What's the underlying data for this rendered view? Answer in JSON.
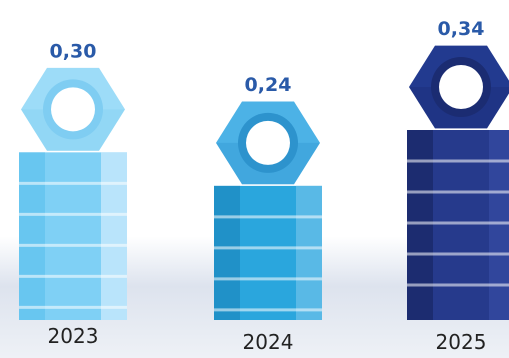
{
  "chart_data": {
    "type": "bar",
    "categories": [
      "2023",
      "2024",
      "2025"
    ],
    "values": [
      0.3,
      0.24,
      0.34
    ],
    "value_labels": [
      "0,30",
      "0,24",
      "0,34"
    ],
    "title": "",
    "xlabel": "",
    "ylabel": "",
    "ylim": [
      0,
      0.34
    ],
    "grid": false,
    "colors": {
      "2023": {
        "main": "#7fd0f5",
        "dark": "#66c4ef",
        "light": "#c3e8fb",
        "hex": "#9ddcf8",
        "hexDark": "#7fcdf2"
      },
      "2024": {
        "main": "#2aa6dd",
        "dark": "#1f8fc5",
        "light": "#62bce8",
        "hex": "#4cb2e6",
        "hexDark": "#2d93cd"
      },
      "2025": {
        "main": "#263a8c",
        "dark": "#1c2b6d",
        "light": "#34499f",
        "hex": "#223a8f",
        "hexDark": "#1b2c72"
      },
      "label_text": "#2a5aa8",
      "year_text": "#222222"
    }
  }
}
